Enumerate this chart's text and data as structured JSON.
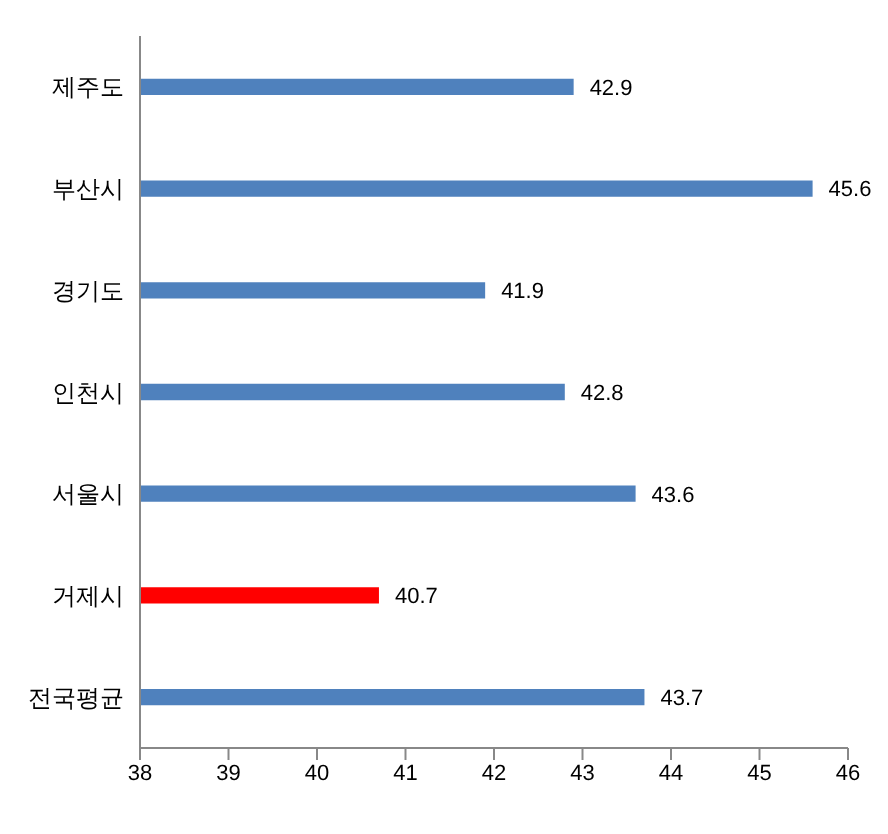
{
  "chart_data": {
    "type": "bar",
    "orientation": "horizontal",
    "categories": [
      "제주도",
      "부산시",
      "경기도",
      "인천시",
      "서울시",
      "거제시",
      "전국평균"
    ],
    "values": [
      42.9,
      45.6,
      41.9,
      42.8,
      43.6,
      40.7,
      43.7
    ],
    "colors": [
      "#4f81bd",
      "#4f81bd",
      "#4f81bd",
      "#4f81bd",
      "#4f81bd",
      "#ff0000",
      "#4f81bd"
    ],
    "xlim": [
      38,
      46
    ],
    "xticks": [
      38,
      39,
      40,
      41,
      42,
      43,
      44,
      45,
      46
    ],
    "data_labels": true,
    "grid": false,
    "legend": false
  }
}
